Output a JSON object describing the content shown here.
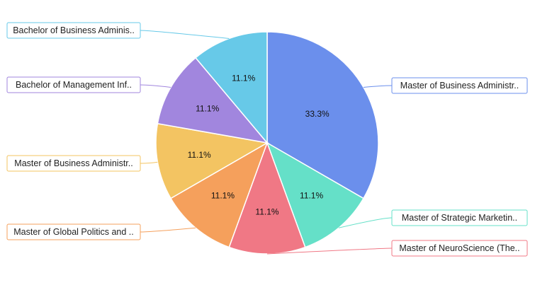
{
  "chart_data": {
    "type": "pie",
    "slices": [
      {
        "label": "Master of Business Administr..",
        "value": 33.3,
        "display": "33.3%",
        "color": "#6b8fec"
      },
      {
        "label": "Master of Strategic Marketin..",
        "value": 11.1,
        "display": "11.1%",
        "color": "#65e0c8"
      },
      {
        "label": "Master of NeuroScience (The..",
        "value": 11.1,
        "display": "11.1%",
        "color": "#f07885"
      },
      {
        "label": "Master of Global Politics and ..",
        "value": 11.1,
        "display": "11.1%",
        "color": "#f5a05c"
      },
      {
        "label": "Master of Business Administr..",
        "value": 11.1,
        "display": "11.1%",
        "color": "#f3c462"
      },
      {
        "label": "Bachelor of Management Inf..",
        "value": 11.1,
        "display": "11.1%",
        "color": "#a186de"
      },
      {
        "label": "Bachelor of Business Adminis..",
        "value": 11.1,
        "display": "11.1%",
        "color": "#67c9e8"
      }
    ],
    "legend": "callout labels"
  }
}
